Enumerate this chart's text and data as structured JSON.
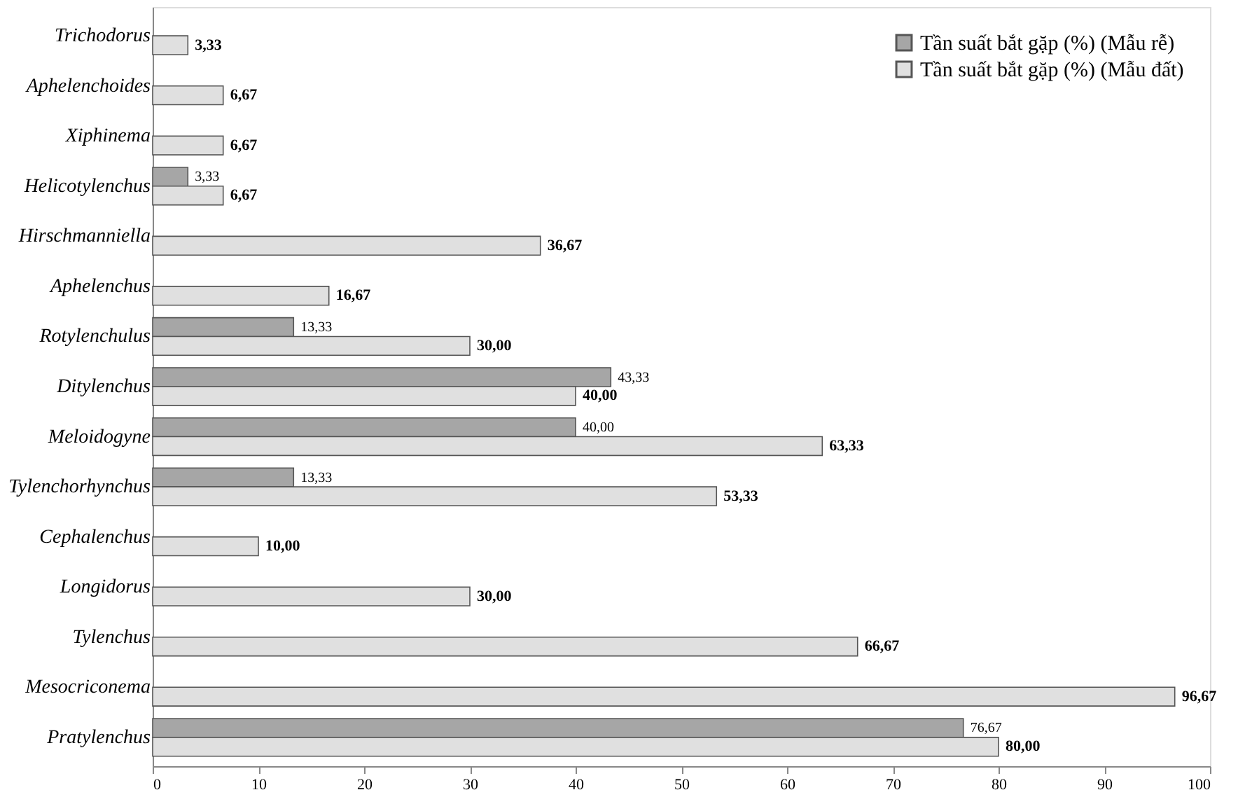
{
  "chart_data": {
    "type": "bar",
    "orientation": "horizontal",
    "categories": [
      "Trichodorus",
      "Aphelenchoides",
      "Xiphinema",
      "Helicotylenchus",
      "Hirschmanniella",
      "Aphelenchus",
      "Rotylenchulus",
      "Ditylenchus",
      "Meloidogyne",
      "Tylenchorhynchus",
      "Cephalenchus",
      "Longidorus",
      "Tylenchus",
      "Mesocriconema",
      "Pratylenchus"
    ],
    "series": [
      {
        "name": "Tần suất bắt gặp (%) (Mẫu rễ)",
        "color": "#a6a6a6",
        "values": [
          null,
          null,
          null,
          3.33,
          null,
          null,
          13.33,
          43.33,
          40.0,
          13.33,
          null,
          null,
          null,
          null,
          76.67
        ],
        "value_labels": [
          null,
          null,
          null,
          "3,33",
          null,
          null,
          "13,33",
          "43,33",
          "40,00",
          "13,33",
          null,
          null,
          null,
          null,
          "76,67"
        ]
      },
      {
        "name": "Tần suất bắt gặp (%) (Mẫu đất)",
        "color": "#e0e0e0",
        "values": [
          3.33,
          6.67,
          6.67,
          6.67,
          36.67,
          16.67,
          30.0,
          40.0,
          63.33,
          53.33,
          10.0,
          30.0,
          66.67,
          96.67,
          80.0
        ],
        "value_labels": [
          "3,33",
          "6,67",
          "6,67",
          "6,67",
          "36,67",
          "16,67",
          "30,00",
          "40,00",
          "63,33",
          "53,33",
          "10,00",
          "30,00",
          "66,67",
          "96,67",
          "80,00"
        ]
      }
    ],
    "xlim": [
      0,
      100
    ],
    "xticks": [
      0,
      10,
      20,
      30,
      40,
      50,
      60,
      70,
      80,
      90,
      100
    ],
    "grid": false,
    "legend": "top right"
  }
}
